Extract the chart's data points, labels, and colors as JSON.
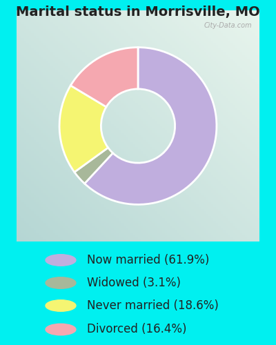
{
  "title": "Marital status in Morrisville, MO",
  "slices": [
    61.9,
    3.1,
    18.6,
    16.4
  ],
  "labels": [
    "Now married (61.9%)",
    "Widowed (3.1%)",
    "Never married (18.6%)",
    "Divorced (16.4%)"
  ],
  "colors": [
    "#c0aede",
    "#a8b89a",
    "#f5f572",
    "#f5a8b0"
  ],
  "bg_color": "#00f0f0",
  "chart_bg_color": "#d8ede4",
  "title_fontsize": 14,
  "legend_fontsize": 12,
  "donut_width": 0.45,
  "start_angle": 90,
  "watermark": "City-Data.com"
}
